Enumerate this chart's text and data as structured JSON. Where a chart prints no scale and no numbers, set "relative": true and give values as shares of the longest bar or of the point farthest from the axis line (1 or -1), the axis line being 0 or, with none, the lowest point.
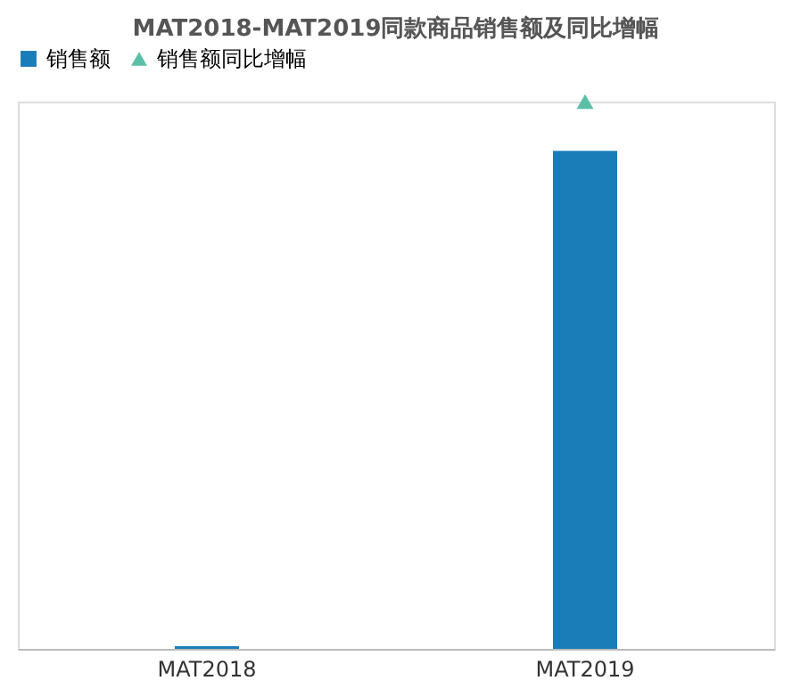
{
  "chart_data": {
    "type": "bar",
    "title": "MAT2018-MAT2019同款商品销售额及同比增幅",
    "categories": [
      "MAT2018",
      "MAT2019"
    ],
    "relative": true,
    "legend": "top",
    "series": [
      {
        "name": "销售额",
        "color": "#1a7db8",
        "values": [
          0.005,
          0.91
        ]
      },
      {
        "name": "销售额同比增幅",
        "type": "scatter",
        "marker": "triangle",
        "color": "#5bbfa8",
        "values": [
          null,
          1
        ]
      }
    ]
  }
}
